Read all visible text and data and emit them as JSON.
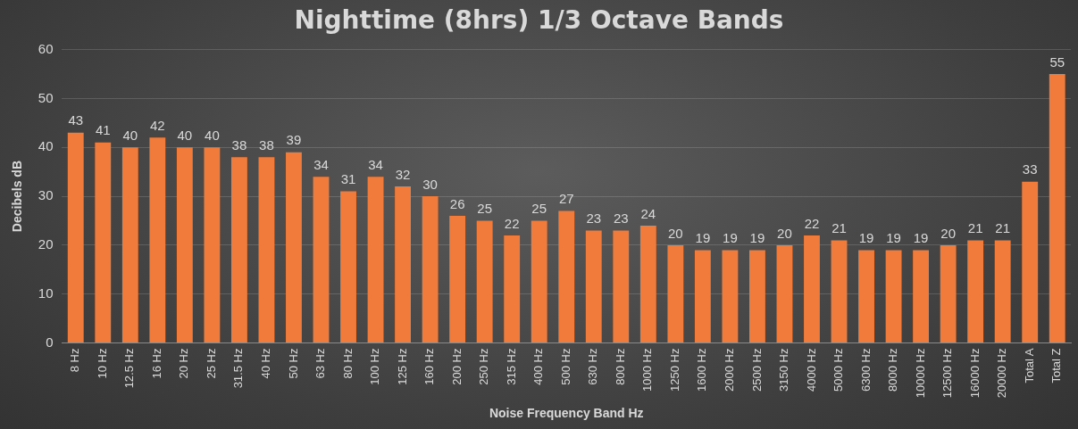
{
  "chart_data": {
    "type": "bar",
    "title": "Nighttime (8hrs) 1/3 Octave Bands",
    "xlabel": "Noise Frequency Band Hz",
    "ylabel": "Decibels dB",
    "categories": [
      "8 Hz",
      "10 Hz",
      "12.5 Hz",
      "16 Hz",
      "20 Hz",
      "25 Hz",
      "31.5 Hz",
      "40 Hz",
      "50 Hz",
      "63 Hz",
      "80 Hz",
      "100 Hz",
      "125 Hz",
      "160 Hz",
      "200 Hz",
      "250 Hz",
      "315 Hz",
      "400 Hz",
      "500 Hz",
      "630 Hz",
      "800 Hz",
      "1000 Hz",
      "1250 Hz",
      "1600 Hz",
      "2000 Hz",
      "2500 Hz",
      "3150 Hz",
      "4000 Hz",
      "5000 Hz",
      "6300 Hz",
      "8000 Hz",
      "10000 Hz",
      "12500 Hz",
      "16000 Hz",
      "20000 Hz",
      "Total A",
      "Total Z"
    ],
    "values": [
      43,
      41,
      40,
      42,
      40,
      40,
      38,
      38,
      39,
      34,
      31,
      34,
      32,
      30,
      26,
      25,
      22,
      25,
      27,
      23,
      23,
      24,
      20,
      19,
      19,
      19,
      20,
      22,
      21,
      19,
      19,
      19,
      20,
      21,
      21,
      33,
      55
    ],
    "color": "#f07b3a",
    "ylim": [
      0,
      60
    ],
    "yticks": [
      0,
      10,
      20,
      30,
      40,
      50,
      60
    ],
    "grid": "y",
    "data_labels": true
  }
}
